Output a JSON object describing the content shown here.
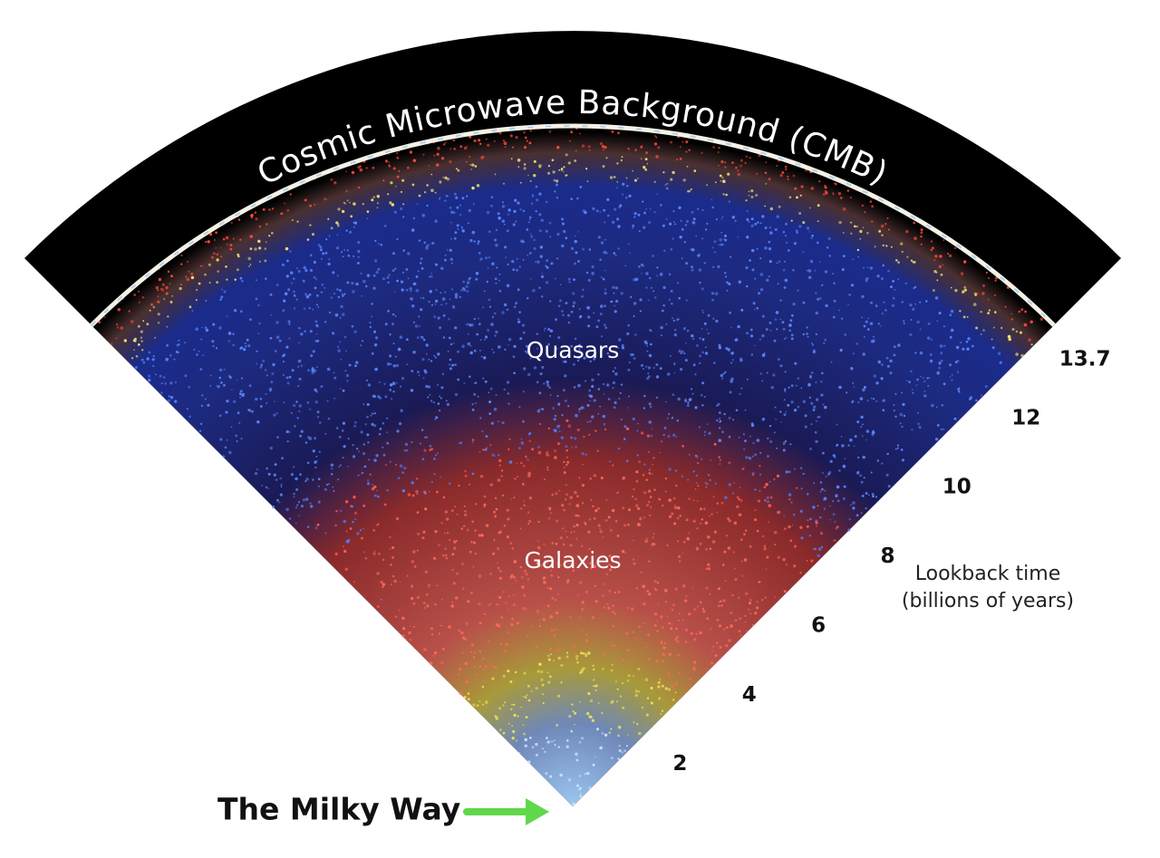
{
  "title": "Cosmic Microwave Background (CMB)",
  "regions": [
    "Quasars",
    "Galaxies"
  ],
  "scale": {
    "ticks": [
      2,
      4,
      6,
      8,
      10,
      12,
      13.7
    ],
    "label": [
      "Lookback time",
      "(billions of years)"
    ]
  },
  "origin_label": "The Milky Way"
}
